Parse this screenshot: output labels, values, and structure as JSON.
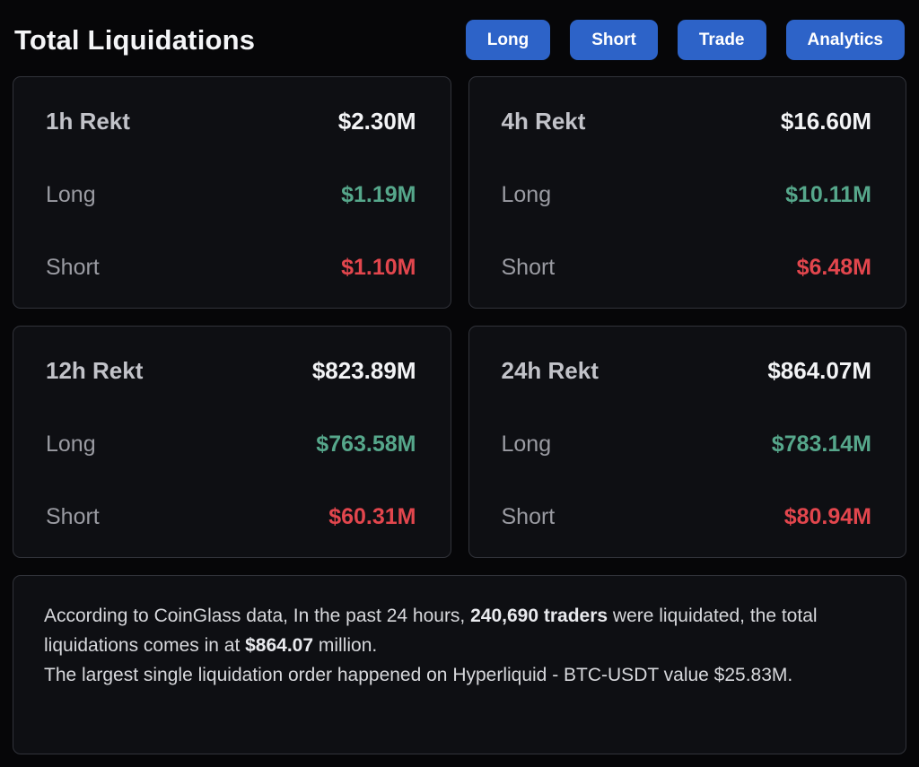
{
  "header": {
    "title": "Total Liquidations",
    "buttons": [
      {
        "label": "Long"
      },
      {
        "label": "Short"
      },
      {
        "label": "Trade"
      },
      {
        "label": "Analytics"
      }
    ]
  },
  "colors": {
    "accent_blue": "#2d63c8",
    "long_green": "#56a78b",
    "short_red": "#e2464d",
    "card_bg": "#0e0f13",
    "page_bg": "#060608"
  },
  "cards": [
    {
      "period": "1h Rekt",
      "total": "$2.30M",
      "long_label": "Long",
      "long_value": "$1.19M",
      "short_label": "Short",
      "short_value": "$1.10M"
    },
    {
      "period": "4h Rekt",
      "total": "$16.60M",
      "long_label": "Long",
      "long_value": "$10.11M",
      "short_label": "Short",
      "short_value": "$6.48M"
    },
    {
      "period": "12h Rekt",
      "total": "$823.89M",
      "long_label": "Long",
      "long_value": "$763.58M",
      "short_label": "Short",
      "short_value": "$60.31M"
    },
    {
      "period": "24h Rekt",
      "total": "$864.07M",
      "long_label": "Long",
      "long_value": "$783.14M",
      "short_label": "Short",
      "short_value": "$80.94M"
    }
  ],
  "summary": {
    "line1": [
      {
        "text": "According to CoinGlass data, In the past 24 hours, "
      },
      {
        "text": "240,690 traders"
      },
      {
        "text": " were liquidated, the total liquidations comes in at "
      },
      {
        "text": "$864.07"
      },
      {
        "text": " million."
      }
    ],
    "line2": [
      {
        "text": "The largest single liquidation order happened on Hyperliquid - BTC-USDT value $25.83M."
      }
    ]
  }
}
